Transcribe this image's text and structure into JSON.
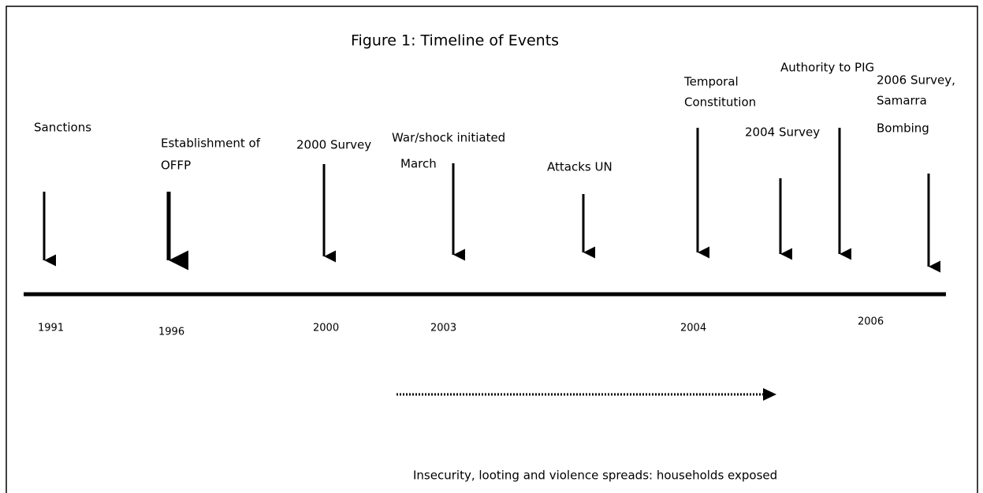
{
  "title": "Figure 1: Timeline of Events",
  "events": [
    {
      "lines": [
        "Sanctions"
      ]
    },
    {
      "lines": [
        "Establishment of",
        "OFFP"
      ]
    },
    {
      "lines": [
        "2000 Survey"
      ]
    },
    {
      "lines": [
        "War/shock initiated",
        "March"
      ]
    },
    {
      "lines": [
        "Attacks UN"
      ]
    },
    {
      "lines": [
        "Temporal",
        "Constitution"
      ]
    },
    {
      "lines": [
        "2004 Survey"
      ]
    },
    {
      "lines": [
        "Authority to PIG"
      ]
    },
    {
      "lines": [
        "2006 Survey,",
        "Samarra",
        "Bombing"
      ]
    }
  ],
  "years": [
    "1991",
    "1996",
    "2000",
    "2003",
    "2004",
    "2006"
  ],
  "note": "Insecurity, looting and violence spreads: households exposed"
}
